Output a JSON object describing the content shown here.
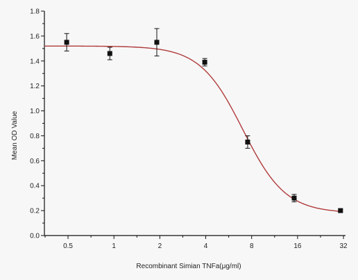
{
  "chart_data": {
    "type": "scatter",
    "title": "",
    "xlabel": "Recombinant Simian TNFa(μg/ml)",
    "ylabel": "Mean OD Value",
    "x_scale": "log2",
    "xlim": [
      0.35,
      33
    ],
    "ylim": [
      0,
      1.8
    ],
    "x_ticks": [
      0.5,
      1,
      2,
      4,
      8,
      16,
      32
    ],
    "x_tick_labels": [
      "0.5",
      "1",
      "2",
      "4",
      "8",
      "16",
      "32"
    ],
    "y_ticks": [
      0,
      0.2,
      0.4,
      0.6,
      0.8,
      1.0,
      1.2,
      1.4,
      1.6,
      1.8
    ],
    "y_tick_labels": [
      "0.0",
      "0.2",
      "0.4",
      "0.6",
      "0.8",
      "1.0",
      "1.2",
      "1.4",
      "1.6",
      "1.8"
    ],
    "grid": false,
    "legend": "none",
    "series": [
      {
        "points": [
          {
            "x": 0.49,
            "y": 1.55,
            "err": 0.07
          },
          {
            "x": 0.94,
            "y": 1.46,
            "err": 0.05
          },
          {
            "x": 1.91,
            "y": 1.55,
            "err": 0.11
          },
          {
            "x": 3.94,
            "y": 1.39,
            "err": 0.03
          },
          {
            "x": 7.53,
            "y": 0.75,
            "err": 0.05
          },
          {
            "x": 15.2,
            "y": 0.3,
            "err": 0.03
          },
          {
            "x": 30.6,
            "y": 0.2,
            "err": 0.01
          }
        ]
      }
    ],
    "fit": {
      "type": "4PL",
      "top": 1.52,
      "bottom": 0.18,
      "ec50": 7.0,
      "hill": 3.1,
      "x_range": [
        0.35,
        30.6
      ]
    },
    "colors": {
      "marker": "#111111",
      "fit_line": "#b03a3a",
      "axis": "#111111",
      "background": "#f7f7f7"
    }
  }
}
